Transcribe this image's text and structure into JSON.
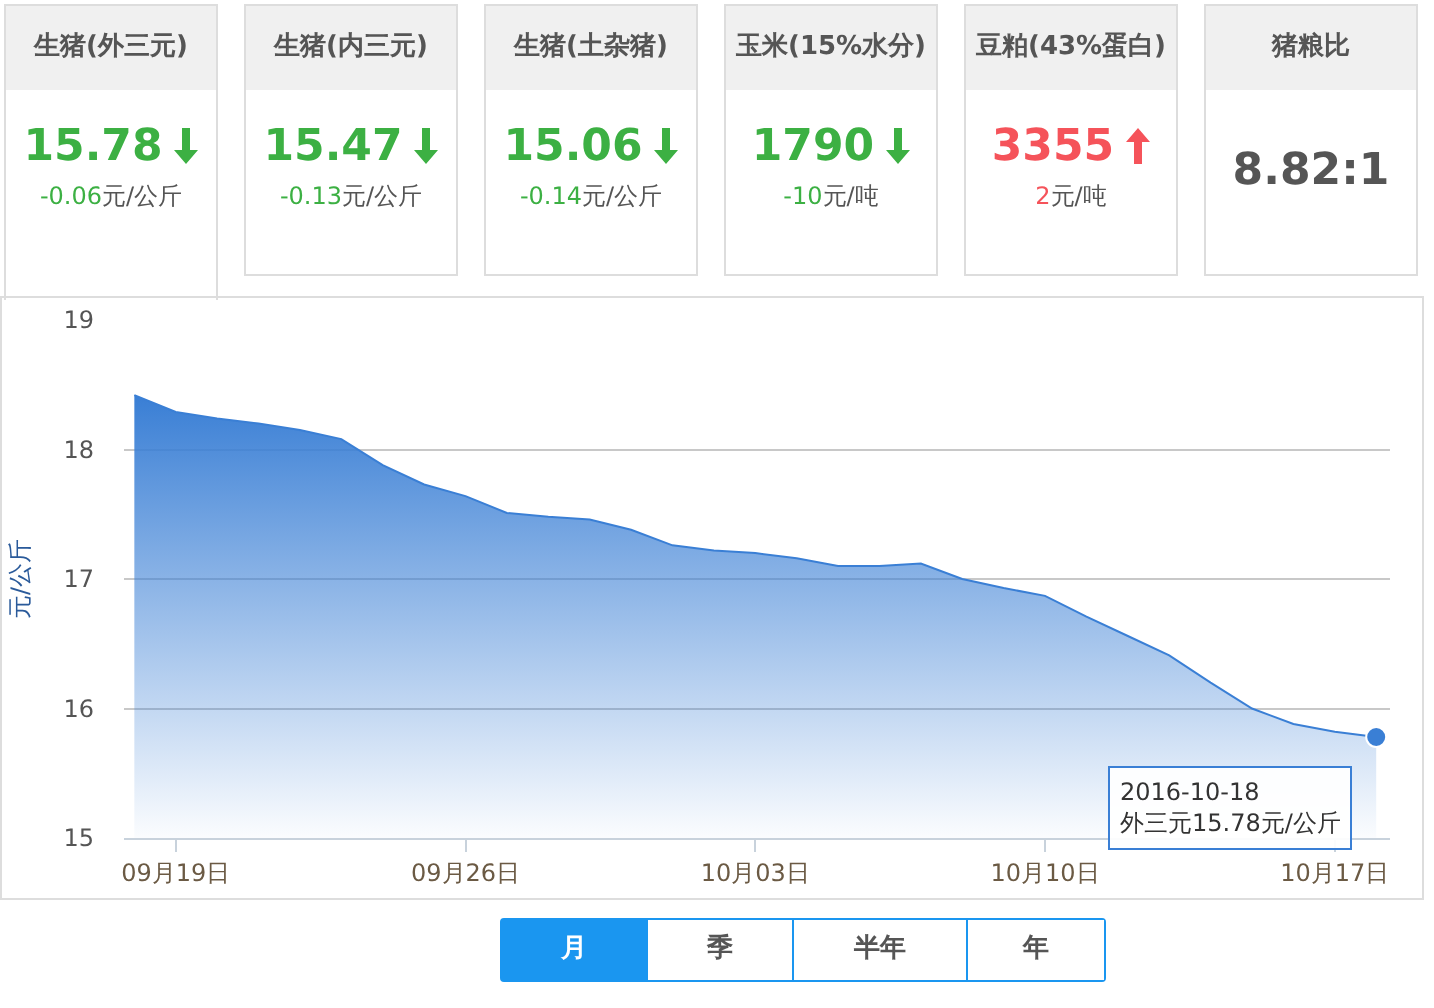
{
  "chart_data": [
    {
      "type": "other",
      "categories": [
        "生猪(外三元)",
        "生猪(内三元)",
        "生猪(土杂猪)",
        "玉米(15%水分)",
        "豆粕(43%蛋白)",
        "猪粮比"
      ],
      "value_labels": [
        "15.78",
        "15.47",
        "15.06",
        "1790",
        "3355",
        "8.82:1"
      ],
      "annotations": [
        "-0.06元/公斤",
        "-0.13元/公斤",
        "-0.14元/公斤",
        "-10元/吨",
        "2元/吨"
      ]
    },
    {
      "type": "area",
      "ylabel": "元/公斤",
      "x": [
        "2016-09-18",
        "2016-09-19",
        "2016-09-20",
        "2016-09-21",
        "2016-09-22",
        "2016-09-23",
        "2016-09-24",
        "2016-09-25",
        "2016-09-26",
        "2016-09-27",
        "2016-09-28",
        "2016-09-29",
        "2016-09-30",
        "2016-10-01",
        "2016-10-02",
        "2016-10-03",
        "2016-10-04",
        "2016-10-05",
        "2016-10-06",
        "2016-10-07",
        "2016-10-08",
        "2016-10-09",
        "2016-10-10",
        "2016-10-11",
        "2016-10-12",
        "2016-10-13",
        "2016-10-14",
        "2016-10-15",
        "2016-10-16",
        "2016-10-17",
        "2016-10-18"
      ],
      "series": [
        {
          "color": "#3a7fd5",
          "values": [
            18.42,
            18.29,
            18.24,
            18.2,
            18.15,
            18.08,
            17.88,
            17.73,
            17.64,
            17.51,
            17.48,
            17.46,
            17.38,
            17.26,
            17.22,
            17.2,
            17.16,
            17.1,
            17.1,
            17.12,
            17.0,
            16.93,
            16.87,
            16.71,
            16.56,
            16.41,
            16.2,
            16.0,
            15.88,
            15.82,
            15.78
          ]
        }
      ],
      "xlim": [
        "2016-09-17T18:00",
        "2016-10-18T08:00"
      ],
      "xticks": [
        {
          "value": "2016-09-19",
          "label": "09月19日"
        },
        {
          "value": "2016-09-26",
          "label": "09月26日"
        },
        {
          "value": "2016-10-03",
          "label": "10月03日"
        },
        {
          "value": "2016-10-10",
          "label": "10月10日"
        },
        {
          "value": "2016-10-17",
          "label": "10月17日"
        }
      ],
      "ylim": [
        15,
        19
      ],
      "yticks": [
        15,
        16,
        17,
        18,
        19
      ],
      "grid": "y",
      "marker": "none",
      "line_style": "solid",
      "annotations": [
        {
          "text": "2016-10-18\n外三元15.78元/公斤",
          "x": "2016-10-18",
          "y": 15.78
        }
      ]
    },
    {
      "type": "other",
      "categories": [
        "月",
        "季",
        "半年",
        "年"
      ],
      "colors": [
        "#1a96f0",
        "#ffffff",
        "#ffffff",
        "#ffffff"
      ]
    }
  ]
}
